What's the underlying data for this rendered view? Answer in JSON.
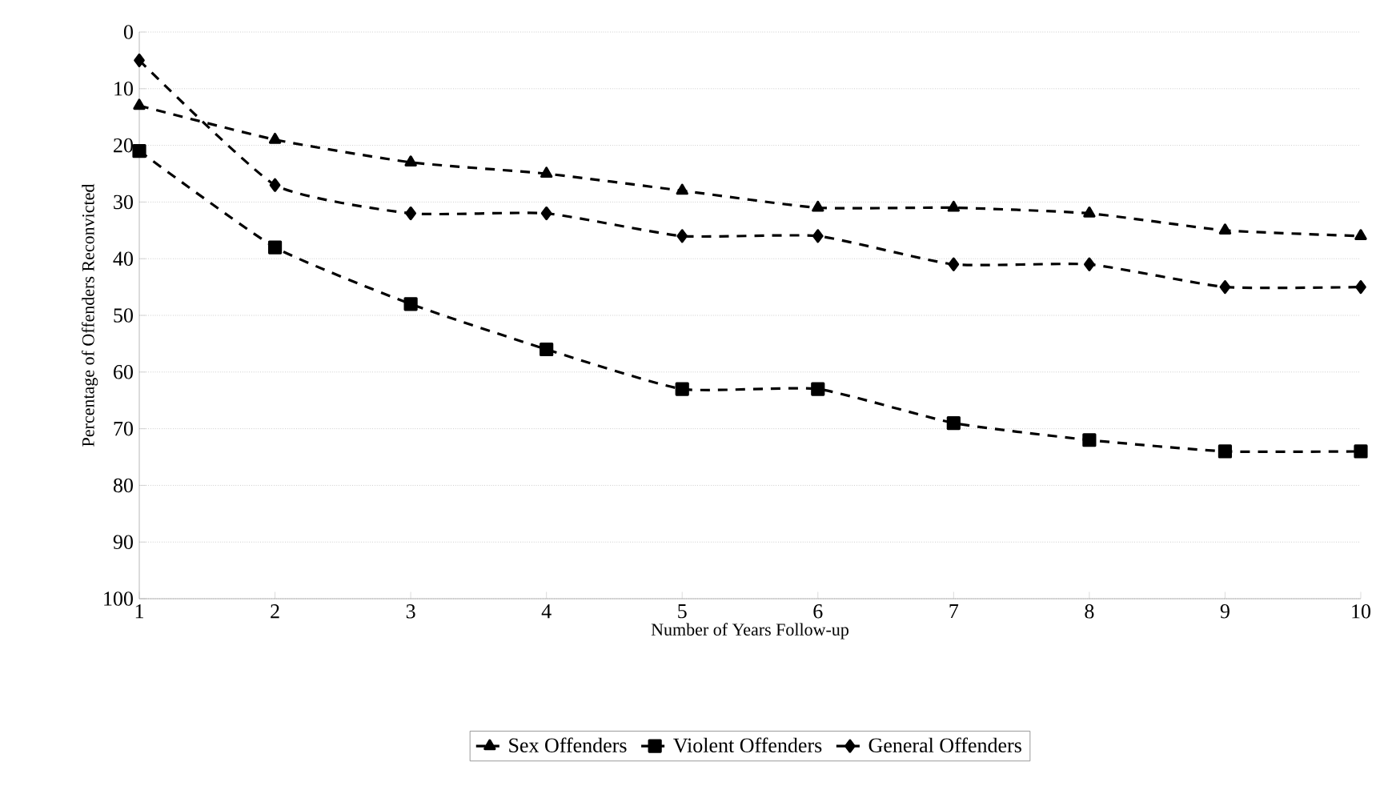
{
  "chart_data": {
    "type": "line",
    "xlabel": "Number of Years Follow-up",
    "ylabel": "Percentage of Offenders Reconvicted",
    "x": [
      1,
      2,
      3,
      4,
      5,
      6,
      7,
      8,
      9,
      10
    ],
    "xlim": [
      1,
      10
    ],
    "xticks": [
      1,
      2,
      3,
      4,
      5,
      6,
      7,
      8,
      9,
      10
    ],
    "ylim": [
      100,
      0
    ],
    "yticks": [
      0,
      10,
      20,
      30,
      40,
      50,
      60,
      70,
      80,
      90,
      100
    ],
    "grid": "y",
    "legend": "bottom",
    "line_style": "dashed",
    "series": [
      {
        "name": "Sex Offenders",
        "color": "#000000",
        "marker": "triangle",
        "values": [
          13,
          19,
          23,
          25,
          28,
          31,
          31,
          32,
          35,
          36
        ]
      },
      {
        "name": "Violent Offenders",
        "color": "#000000",
        "marker": "square",
        "values": [
          21,
          38,
          48,
          56,
          63,
          63,
          69,
          72,
          74,
          74
        ]
      },
      {
        "name": "General Offenders",
        "color": "#000000",
        "marker": "diamond",
        "values": [
          5,
          27,
          32,
          32,
          36,
          36,
          41,
          41,
          45,
          45
        ]
      }
    ]
  }
}
